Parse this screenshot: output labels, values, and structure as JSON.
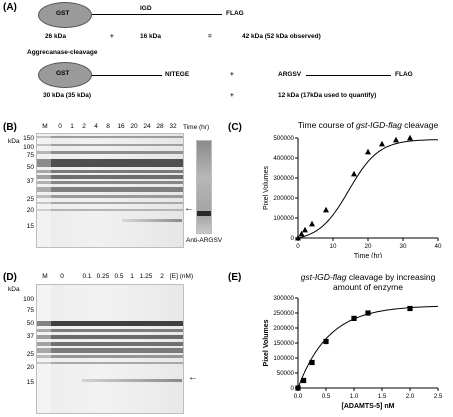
{
  "panel_a": {
    "letter": "(A)",
    "row1": {
      "gst": "GST",
      "igd": "IGD",
      "flag": "FLAG"
    },
    "row2": {
      "mw1": "26 kDa",
      "plus1": "+",
      "mw2": "16 kDa",
      "eq": "=",
      "mw3": "42 kDa (52 kDa observed)"
    },
    "cleavage_label": "Aggrecanase-cleavage",
    "row3": {
      "gst": "GST",
      "nitege": "NITEGE",
      "plus": "+",
      "argsv": "ARGSV",
      "flag": "FLAG"
    },
    "row4": {
      "mw1": "30 kDa (35 kDa)",
      "plus": "+",
      "mw2": "12 kDa (17kDa used to quantify)"
    }
  },
  "panel_b": {
    "letter": "(B)",
    "kda": "kDa",
    "marker_lane": "M",
    "lanes": [
      "0",
      "1",
      "2",
      "4",
      "8",
      "16",
      "20",
      "24",
      "28",
      "32"
    ],
    "lane_unit": "Time (hr)",
    "mw_markers": [
      "150",
      "100",
      "75",
      "50",
      "37",
      "25",
      "20",
      "15"
    ],
    "western_label": "Anti-ARGSV",
    "arrow": "←"
  },
  "panel_d": {
    "letter": "(D)",
    "kda": "kDa",
    "marker_lane": "M",
    "lanes": [
      "0",
      "0.1",
      "0.25",
      "0.5",
      "1",
      "1.25",
      "2"
    ],
    "lane_unit": "[E] (nM)",
    "mw_markers": [
      "100",
      "75",
      "50",
      "37",
      "25",
      "20",
      "15"
    ],
    "arrow": "←"
  },
  "chart_data": [
    {
      "panel": "(C)",
      "type": "scatter",
      "title": "Time course of gst-IGD-flag cleavage",
      "xlabel": "Time (hr)",
      "ylabel": "Pixel Volumes",
      "xlim": [
        0,
        40
      ],
      "ylim": [
        0,
        500000
      ],
      "xticks": [
        "0",
        "10",
        "20",
        "30",
        "40"
      ],
      "yticks": [
        "0",
        "100000",
        "200000",
        "300000",
        "400000",
        "500000"
      ],
      "marker": "triangle",
      "x": [
        0,
        1,
        2,
        4,
        8,
        16,
        20,
        24,
        28,
        32
      ],
      "y": [
        0,
        20000,
        40000,
        70000,
        140000,
        320000,
        430000,
        470000,
        490000,
        500000
      ],
      "fit_curve": true
    },
    {
      "panel": "(E)",
      "type": "scatter",
      "title": "gst-IGD-flag cleavage by increasing amount of enzyme",
      "xlabel": "[ADAMTS-5] nM",
      "ylabel": "Pixel Volumes",
      "xlim": [
        0,
        2.5
      ],
      "ylim": [
        0,
        300000
      ],
      "xticks": [
        "0.0",
        "0.5",
        "1.0",
        "1.5",
        "2.0",
        "2.5"
      ],
      "yticks": [
        "0",
        "50000",
        "100000",
        "150000",
        "200000",
        "250000",
        "300000"
      ],
      "marker": "square",
      "x": [
        0,
        0.1,
        0.25,
        0.5,
        1.0,
        1.25,
        2.0
      ],
      "y": [
        0,
        25000,
        85000,
        155000,
        232000,
        250000,
        265000
      ],
      "fit_curve": true
    }
  ]
}
